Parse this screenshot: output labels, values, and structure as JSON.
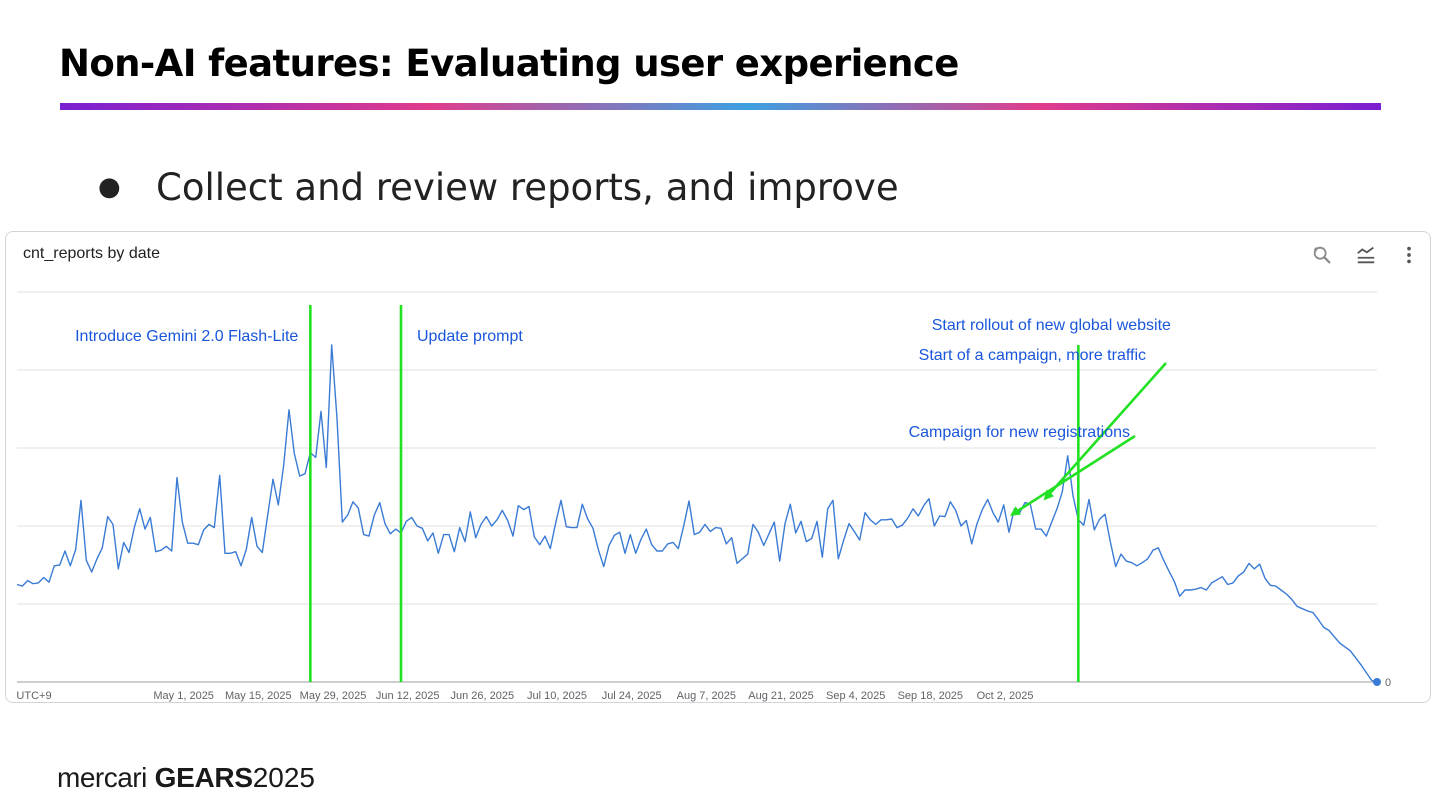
{
  "slide": {
    "title": "Non-AI features: Evaluating user experience",
    "bullet": "Collect and review reports, and improve",
    "bullet_marker": "●",
    "accent_colors": [
      "#7a1fd2",
      "#e03c8c",
      "#3da0e0"
    ]
  },
  "toolbar": {
    "icons": [
      "zoom-reset-icon",
      "chart-type-icon",
      "more-vert-icon"
    ]
  },
  "footer": {
    "brand_mercari": "mercari",
    "brand_gears": "GEARS",
    "brand_year": "2025"
  },
  "chart_data": {
    "type": "line",
    "title": "cnt_reports by date",
    "x_tick_labels": [
      "UTC+9",
      "May 1, 2025",
      "May 15, 2025",
      "May 29, 2025",
      "Jun 12, 2025",
      "Jun 26, 2025",
      "Jul 10, 2025",
      "Jul 24, 2025",
      "Aug 7, 2025",
      "Aug 21, 2025",
      "Sep 4, 2025",
      "Sep 18, 2025",
      "Oct 2, 2025"
    ],
    "y_tick_labels": [
      "0"
    ],
    "ylim": [
      0,
      500
    ],
    "y_gridlines": [
      0,
      100,
      200,
      300,
      400,
      500
    ],
    "grid": true,
    "series_color": "#3a7bd5",
    "marker_color": "#3a7bd5",
    "marker_colors": {
      "event_line": "#22e022",
      "annotation_text": "#1a56db"
    },
    "events": [
      {
        "label": "Introduce Gemini 2.0 Flash-Lite",
        "day": 55
      },
      {
        "label": "Update prompt",
        "day": 72
      },
      {
        "label": "Start rollout of new global website",
        "day": 199
      }
    ],
    "annotations": [
      {
        "label": "Start of a campaign, more traffic",
        "points_to_day": 195
      },
      {
        "label": "Campaign for new registrations",
        "points_to_day": 188
      }
    ],
    "series": [
      {
        "name": "cnt_reports",
        "values": [
          125,
          123,
          130,
          126,
          127,
          134,
          128,
          149,
          150,
          168,
          149,
          170,
          233,
          156,
          141,
          158,
          172,
          212,
          202,
          145,
          179,
          166,
          198,
          222,
          196,
          211,
          167,
          169,
          174,
          168,
          262,
          205,
          178,
          178,
          176,
          195,
          202,
          198,
          265,
          165,
          165,
          167,
          149,
          170,
          211,
          174,
          166,
          214,
          260,
          227,
          278,
          349,
          293,
          264,
          267,
          294,
          288,
          347,
          275,
          432,
          338,
          205,
          214,
          231,
          223,
          189,
          187,
          214,
          230,
          203,
          190,
          196,
          191,
          206,
          211,
          200,
          197,
          181,
          191,
          165,
          189,
          189,
          167,
          198,
          180,
          218,
          185,
          202,
          212,
          200,
          208,
          220,
          207,
          187,
          226,
          221,
          225,
          186,
          176,
          187,
          171,
          204,
          233,
          199,
          198,
          198,
          228,
          209,
          197,
          170,
          148,
          175,
          188,
          192,
          165,
          189,
          165,
          183,
          196,
          176,
          168,
          168,
          177,
          179,
          171,
          200,
          232,
          189,
          192,
          202,
          193,
          198,
          197,
          177,
          185,
          152,
          158,
          164,
          202,
          192,
          175,
          190,
          205,
          155,
          203,
          228,
          191,
          206,
          180,
          184,
          206,
          160,
          222,
          233,
          158,
          182,
          203,
          193,
          182,
          217,
          208,
          202,
          208,
          208,
          209,
          198,
          201,
          210,
          222,
          213,
          226,
          235,
          200,
          213,
          212,
          231,
          220,
          200,
          207,
          177,
          203,
          221,
          234,
          217,
          205,
          227,
          192,
          222,
          217,
          230,
          228,
          196,
          196,
          187,
          205,
          222,
          244,
          290,
          239,
          208,
          201,
          234,
          195,
          209,
          215,
          180,
          148,
          164,
          155,
          153,
          149,
          153,
          158,
          169,
          172,
          156,
          142,
          129,
          110,
          118,
          118,
          119,
          121,
          118,
          127,
          131,
          135,
          125,
          127,
          136,
          141,
          152,
          145,
          151,
          133,
          124,
          123,
          118,
          113,
          106,
          97,
          94,
          91,
          89,
          80,
          70,
          66,
          58,
          50,
          45,
          40,
          31,
          22,
          12,
          2,
          0
        ]
      }
    ]
  }
}
